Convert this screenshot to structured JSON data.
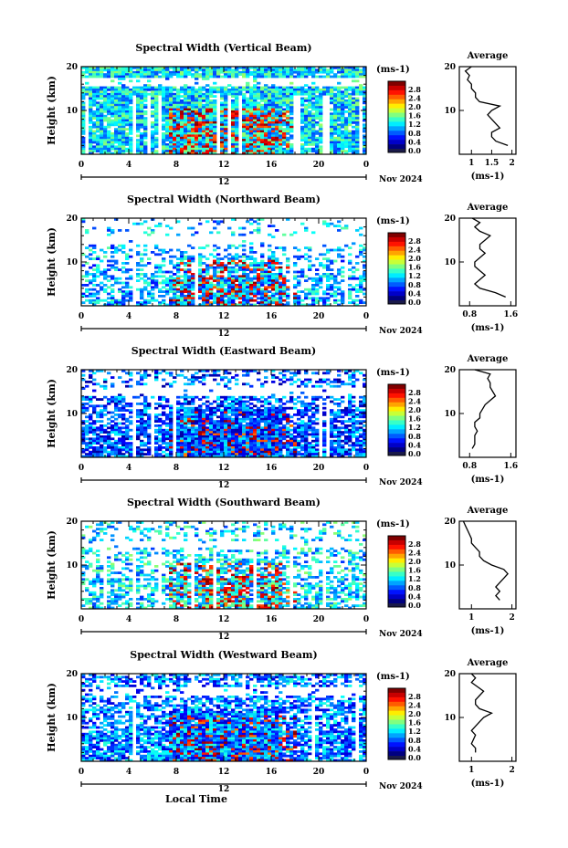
{
  "chart_data": [
    {
      "type": "heatmap",
      "title": "Spectral Width (Vertical Beam)",
      "ylabel": "Height (km)",
      "y_ticks": [
        "20",
        "10"
      ],
      "x_ticks": [
        "0",
        "4",
        "8",
        "12",
        "16",
        "20",
        "0"
      ],
      "xlim": [
        0,
        24
      ],
      "ylim": [
        0,
        20
      ],
      "date_label": "Nov 2024",
      "midnight_label": "12",
      "colorbar": {
        "unit": "(ms-1)",
        "labels": [
          "2.8",
          "2.4",
          "2.0",
          "1.6",
          "1.2",
          "0.8",
          "0.4",
          "0.0"
        ],
        "range": [
          0,
          3.0
        ]
      },
      "avg": {
        "title": "Average",
        "xlabel": "(ms-1)",
        "x_ticks": [
          "1",
          "1.5",
          "2"
        ],
        "xlim": [
          0.7,
          2.1
        ],
        "y_ticks": [
          "20",
          "10"
        ],
        "heights": [
          2,
          3,
          4,
          5,
          6,
          7,
          8,
          9,
          10,
          11,
          12,
          13,
          14,
          15,
          16,
          17,
          18,
          19,
          20
        ],
        "values": [
          1.9,
          1.6,
          1.5,
          1.5,
          1.7,
          1.6,
          1.5,
          1.4,
          1.5,
          1.7,
          1.2,
          1.1,
          1.1,
          1.0,
          1.0,
          0.9,
          0.95,
          0.85,
          1.0
        ]
      }
    },
    {
      "type": "heatmap",
      "title": "Spectral Width (Northward Beam)",
      "ylabel": "Height (km)",
      "y_ticks": [
        "20",
        "10"
      ],
      "x_ticks": [
        "0",
        "4",
        "8",
        "12",
        "16",
        "20",
        "0"
      ],
      "xlim": [
        0,
        24
      ],
      "ylim": [
        0,
        20
      ],
      "date_label": "Nov 2024",
      "midnight_label": "12",
      "colorbar": {
        "unit": "(ms-1)",
        "labels": [
          "2.8",
          "2.4",
          "2.0",
          "1.6",
          "1.2",
          "0.8",
          "0.4",
          "0.0"
        ],
        "range": [
          0,
          3.0
        ]
      },
      "avg": {
        "title": "Average",
        "xlabel": "(ms-1)",
        "x_ticks": [
          "0.8",
          "1.6"
        ],
        "xlim": [
          0.6,
          1.7
        ],
        "y_ticks": [
          "20",
          "10"
        ],
        "heights": [
          2,
          3,
          4,
          5,
          6,
          7,
          8,
          9,
          10,
          11,
          12,
          13,
          14,
          15,
          16,
          17,
          18,
          19,
          20
        ],
        "values": [
          1.5,
          1.3,
          1.0,
          0.9,
          1.0,
          1.1,
          1.0,
          0.9,
          0.9,
          1.0,
          1.1,
          1.0,
          1.0,
          1.1,
          1.2,
          1.0,
          0.9,
          1.0,
          0.85
        ]
      }
    },
    {
      "type": "heatmap",
      "title": "Spectral Width (Eastward Beam)",
      "ylabel": "Height (km)",
      "y_ticks": [
        "20",
        "10"
      ],
      "x_ticks": [
        "0",
        "4",
        "8",
        "12",
        "16",
        "20",
        "0"
      ],
      "xlim": [
        0,
        24
      ],
      "ylim": [
        0,
        20
      ],
      "date_label": "Nov 2024",
      "midnight_label": "12",
      "colorbar": {
        "unit": "(ms-1)",
        "labels": [
          "2.8",
          "2.4",
          "2.0",
          "1.6",
          "1.2",
          "0.8",
          "0.4",
          "0.0"
        ],
        "range": [
          0,
          3.0
        ]
      },
      "avg": {
        "title": "Average",
        "xlabel": "(ms-1)",
        "x_ticks": [
          "0.8",
          "1.6"
        ],
        "xlim": [
          0.6,
          1.7
        ],
        "y_ticks": [
          "20",
          "10"
        ],
        "heights": [
          2,
          3,
          4,
          5,
          6,
          7,
          8,
          9,
          10,
          11,
          12,
          13,
          14,
          15,
          16,
          17,
          18,
          19,
          20
        ],
        "values": [
          0.85,
          0.9,
          0.9,
          0.9,
          0.95,
          0.9,
          0.9,
          1.0,
          1.0,
          1.05,
          1.1,
          1.2,
          1.3,
          1.25,
          1.2,
          1.2,
          1.15,
          1.2,
          0.9
        ]
      }
    },
    {
      "type": "heatmap",
      "title": "Spectral Width (Southward Beam)",
      "ylabel": "Height (km)",
      "y_ticks": [
        "20",
        "10"
      ],
      "x_ticks": [
        "0",
        "4",
        "8",
        "12",
        "16",
        "20",
        "0"
      ],
      "xlim": [
        0,
        24
      ],
      "ylim": [
        0,
        20
      ],
      "date_label": "Nov 2024",
      "midnight_label": "12",
      "colorbar": {
        "unit": "(ms-1)",
        "labels": [
          "2.8",
          "2.4",
          "2.0",
          "1.6",
          "1.2",
          "0.8",
          "0.4",
          "0.0"
        ],
        "range": [
          0,
          3.0
        ]
      },
      "avg": {
        "title": "Average",
        "xlabel": "(ms-1)",
        "x_ticks": [
          "1",
          "2"
        ],
        "xlim": [
          0.7,
          2.1
        ],
        "y_ticks": [
          "20",
          "10"
        ],
        "heights": [
          2,
          3,
          4,
          5,
          6,
          7,
          8,
          9,
          10,
          11,
          12,
          13,
          14,
          15,
          16,
          17,
          18,
          19,
          20
        ],
        "values": [
          1.7,
          1.6,
          1.7,
          1.6,
          1.7,
          1.8,
          1.9,
          1.8,
          1.5,
          1.3,
          1.2,
          1.2,
          1.1,
          1.0,
          1.0,
          0.95,
          0.9,
          0.85,
          0.8
        ]
      }
    },
    {
      "type": "heatmap",
      "title": "Spectral Width (Westward Beam)",
      "ylabel": "Height (km)",
      "y_ticks": [
        "20",
        "10"
      ],
      "x_ticks": [
        "0",
        "4",
        "8",
        "12",
        "16",
        "20",
        "0"
      ],
      "xlim": [
        0,
        24
      ],
      "ylim": [
        0,
        20
      ],
      "date_label": "Nov 2024",
      "midnight_label": "12",
      "xlabel": "Local Time",
      "colorbar": {
        "unit": "(ms-1)",
        "labels": [
          "2.8",
          "2.4",
          "2.0",
          "1.6",
          "1.2",
          "0.8",
          "0.4",
          "0.0"
        ],
        "range": [
          0,
          3.0
        ]
      },
      "avg": {
        "title": "Average",
        "xlabel": "(ms-1)",
        "x_ticks": [
          "1",
          "2"
        ],
        "xlim": [
          0.7,
          2.1
        ],
        "y_ticks": [
          "20",
          "10"
        ],
        "heights": [
          2,
          3,
          4,
          5,
          6,
          7,
          8,
          9,
          10,
          11,
          12,
          13,
          14,
          15,
          16,
          17,
          18,
          19,
          20
        ],
        "values": [
          1.1,
          1.1,
          1.0,
          1.05,
          1.1,
          1.0,
          1.1,
          1.2,
          1.3,
          1.5,
          1.2,
          1.1,
          1.1,
          1.2,
          1.3,
          1.15,
          1.0,
          1.1,
          1.0
        ]
      }
    }
  ]
}
